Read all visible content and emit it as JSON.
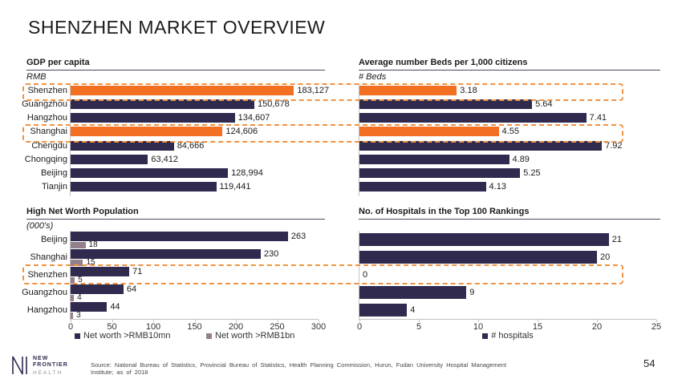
{
  "title": "SHENZHEN MARKET OVERVIEW",
  "page_number": "54",
  "source_text": "Source: National Bureau of Statistics, Provincial Bureau of Statistics, Health Planning Commission, Hurun, Fudan University Hospital Management Institute; as of 2018",
  "logo": {
    "line1": "NEW",
    "line2": "FRONTIER",
    "line3": "HEALTH"
  },
  "colors": {
    "primary": "#302a4e",
    "highlight": "#f36f21",
    "secondary": "#92808d",
    "dashed_border": "#f0913f"
  },
  "chart_data": [
    {
      "id": "gdp_per_capita",
      "type": "bar",
      "orientation": "horizontal",
      "title": "GDP per capita",
      "subtitle": "RMB",
      "categories": [
        "Shenzhen",
        "Guangzhou",
        "Hangzhou",
        "Shanghai",
        "Chengdu",
        "Chongqing",
        "Beijing",
        "Tianjin"
      ],
      "values": [
        183127,
        150678,
        134607,
        124606,
        84666,
        63412,
        128994,
        119441
      ],
      "value_labels": [
        "183,127",
        "150,678",
        "134,607",
        "124,606",
        "84,666",
        "63,412",
        "128,994",
        "119,441"
      ],
      "highlighted_categories": [
        "Shenzhen",
        "Shanghai"
      ],
      "axis_max": 225000
    },
    {
      "id": "beds_per_1000_citizens",
      "type": "bar",
      "orientation": "horizontal",
      "title": "Average number Beds per 1,000 citizens",
      "subtitle": "# Beds",
      "categories": [
        "Shenzhen",
        "Guangzhou",
        "Hangzhou",
        "Shanghai",
        "Chengdu",
        "Chongqing",
        "Beijing",
        "Tianjin"
      ],
      "values": [
        3.18,
        5.64,
        7.41,
        4.55,
        7.92,
        4.89,
        5.25,
        4.13
      ],
      "value_labels": [
        "3.18",
        "5.64",
        "7.41",
        "4.55",
        "7.92",
        "4.89",
        "5.25",
        "4.13"
      ],
      "highlighted_categories": [
        "Shenzhen",
        "Shanghai"
      ],
      "axis_max": 9.7
    },
    {
      "id": "high_net_worth_population",
      "type": "bar",
      "orientation": "horizontal",
      "title": "High Net Worth Population",
      "subtitle": "(000's)",
      "categories": [
        "Beijing",
        "Shanghai",
        "Shenzhen",
        "Guangzhou",
        "Hangzhou"
      ],
      "series": [
        {
          "name": "Net worth >RMB10mn",
          "values": [
            263,
            230,
            71,
            64,
            44
          ],
          "value_labels": [
            "263",
            "230",
            "71",
            "64",
            "44"
          ]
        },
        {
          "name": "Net worth >RMB1bn",
          "values": [
            18,
            15,
            5,
            4,
            3
          ],
          "value_labels": [
            "18",
            "15",
            "5",
            "4",
            "3"
          ]
        }
      ],
      "x_ticks": [
        "0",
        "50",
        "100",
        "150",
        "200",
        "250",
        "300"
      ],
      "xlim": [
        0,
        300
      ],
      "highlighted_categories": [
        "Shenzhen"
      ],
      "legend": [
        "Net worth >RMB10mn",
        "Net worth >RMB1bn"
      ]
    },
    {
      "id": "hospitals_in_top_100_rankings",
      "type": "bar",
      "orientation": "horizontal",
      "title": "No. of Hospitals in the Top 100 Rankings",
      "subtitle": "",
      "categories": [
        "Beijing",
        "Shanghai",
        "Shenzhen",
        "Guangzhou",
        "Hangzhou"
      ],
      "values": [
        21,
        20,
        0,
        9,
        4
      ],
      "value_labels": [
        "21",
        "20",
        "0",
        "9",
        "4"
      ],
      "x_ticks": [
        "0",
        "5",
        "10",
        "15",
        "20",
        "25"
      ],
      "xlim": [
        0,
        25
      ],
      "highlighted_categories": [
        "Shenzhen"
      ],
      "legend": [
        "# hospitals"
      ]
    }
  ]
}
